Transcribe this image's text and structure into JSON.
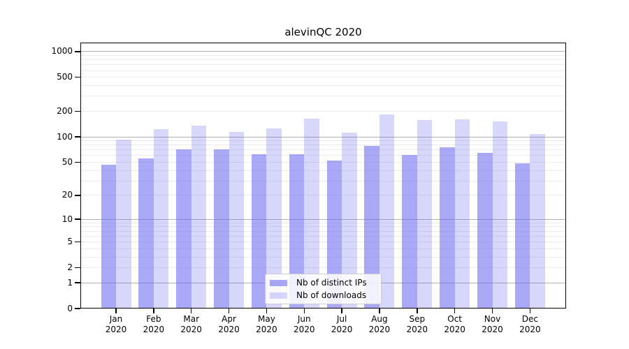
{
  "figure": {
    "title": "alevinQC 2020"
  },
  "chart_data": {
    "type": "bar",
    "title": "alevinQC 2020",
    "categories": [
      "Jan",
      "Feb",
      "Mar",
      "Apr",
      "May",
      "Jun",
      "Jul",
      "Aug",
      "Sep",
      "Oct",
      "Nov",
      "Dec"
    ],
    "x_year_line": "2020",
    "series": [
      {
        "name": "Nb of distinct IPs",
        "color_hex": "#a9a9f7",
        "fill_rgba": "rgba(102,102,240,0.56)",
        "values": [
          47,
          56,
          71,
          71,
          62,
          62,
          52,
          78,
          61,
          75,
          65,
          49
        ]
      },
      {
        "name": "Nb of downloads",
        "color_hex": "#d8d8fb",
        "fill_rgba": "rgba(102,102,240,0.26)",
        "values": [
          92,
          124,
          135,
          115,
          126,
          163,
          113,
          182,
          158,
          160,
          152,
          109
        ]
      }
    ],
    "yscale": "log10(1+y)",
    "ylim": [
      0,
      1273
    ],
    "yticks": [
      0,
      1,
      2,
      5,
      10,
      20,
      50,
      100,
      200,
      500,
      1000
    ],
    "major_gridlines": [
      1,
      10,
      100,
      1000
    ],
    "minor_gridlines": [
      2,
      3,
      4,
      5,
      6,
      7,
      8,
      9,
      20,
      30,
      40,
      50,
      60,
      70,
      80,
      90,
      200,
      300,
      400,
      500,
      600,
      700,
      800,
      900
    ],
    "grid": true,
    "legend_position": "lower center",
    "xlabel": "",
    "ylabel": ""
  }
}
